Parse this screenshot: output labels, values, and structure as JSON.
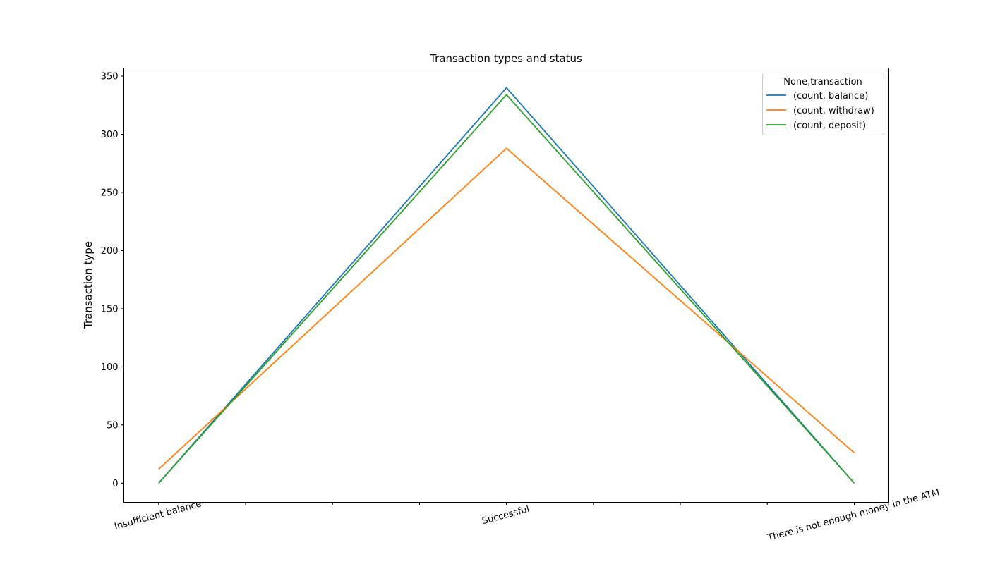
{
  "chart_data": {
    "type": "line",
    "title": "Transaction types and status",
    "xlabel": "",
    "ylabel": "Transaction type",
    "categories": [
      "Insufficient balance",
      "Successful",
      "There is not enough money in the ATM"
    ],
    "ylim": [
      -16.5,
      357
    ],
    "yticks": [
      0,
      50,
      100,
      150,
      200,
      250,
      300,
      350
    ],
    "grid": false,
    "legend": {
      "title": "None,transaction",
      "placement": "top-right"
    },
    "series": [
      {
        "name": "(count, balance)",
        "color": "#1f77b4",
        "values": [
          0,
          340,
          0
        ]
      },
      {
        "name": "(count, withdraw)",
        "color": "#ff7f0e",
        "values": [
          12,
          288,
          26
        ]
      },
      {
        "name": "(count, deposit)",
        "color": "#2ca02c",
        "values": [
          0,
          334,
          0
        ]
      }
    ]
  }
}
